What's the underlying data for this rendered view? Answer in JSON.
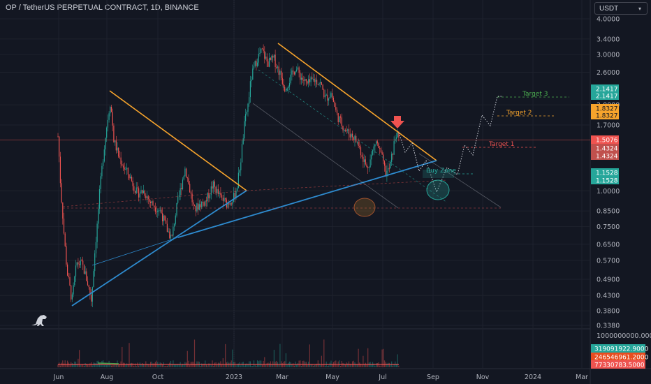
{
  "header": {
    "title": "OP / TetherUS PERPETUAL CONTRACT, 1D, BINANCE"
  },
  "currency": {
    "selected": "USDT"
  },
  "colors": {
    "background": "#131722",
    "up": "#26a69a",
    "down": "#ef5350",
    "trend_orange": "#f7a42c",
    "trend_blue": "#2e8bcf",
    "target1": "#ef5350",
    "target2": "#f7a42c",
    "target3": "#4caf50",
    "text": "#b2b5be",
    "grid": "#1e222d"
  },
  "chart_data": {
    "type": "candlestick",
    "price_axis": {
      "scale": "log",
      "ticks": [
        "4.0000",
        "3.4000",
        "3.0000",
        "2.6000",
        "2.0000",
        "1.7000",
        "1.0000",
        "0.8500",
        "0.7500",
        "0.6500",
        "0.5700",
        "0.4900",
        "0.4300",
        "0.3800",
        "0.3380"
      ]
    },
    "volume_axis": {
      "ticks": [
        "1000000000.0000"
      ]
    },
    "time_axis": {
      "ticks": [
        "Jun",
        "Aug",
        "Oct",
        "2023",
        "Mar",
        "May",
        "Jul",
        "Sep",
        "Nov",
        "2024",
        "Mar"
      ]
    },
    "price_labels": [
      {
        "value": "2.1417",
        "style": "green"
      },
      {
        "value": "2.1417",
        "style": "green"
      },
      {
        "value": "1.8327",
        "style": "orange"
      },
      {
        "value": "1.8327",
        "style": "orange"
      },
      {
        "value": "1.5076",
        "style": "red"
      },
      {
        "value": "1.4324",
        "style": "red"
      },
      {
        "value": "1.4324",
        "style": "red"
      },
      {
        "value": "1.1528",
        "style": "green"
      },
      {
        "value": "1.1528",
        "style": "green"
      }
    ],
    "volume_labels": [
      {
        "value": "319091922.9000",
        "style": "green"
      },
      {
        "value": "246546961.2000",
        "style": "red"
      },
      {
        "value": "77330783.5000",
        "style": "red"
      }
    ],
    "annotations": [
      {
        "text": "Target 3",
        "price": 2.1417
      },
      {
        "text": "Target 2",
        "price": 1.8327
      },
      {
        "text": "Target 1",
        "price": 1.4324
      },
      {
        "text": "Buy Zone",
        "price": 1.1528
      }
    ],
    "current_price": 1.5076
  }
}
